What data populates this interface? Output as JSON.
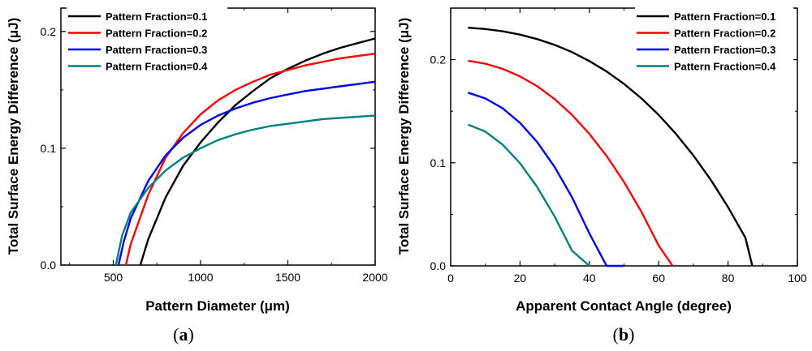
{
  "figure_labels": {
    "a_open": "(",
    "a_letter": "a",
    "a_close": ")",
    "b_open": "(",
    "b_letter": "b",
    "b_close": ")"
  },
  "chart_data": [
    {
      "type": "line",
      "panel": "a",
      "title": "",
      "xlabel": "Pattern Diameter (μm)",
      "ylabel": "Total Surface Energy Difference (μJ)",
      "xlim": [
        200,
        2000
      ],
      "ylim": [
        0,
        0.22
      ],
      "xticks": [
        500,
        1000,
        1500,
        2000
      ],
      "xtick_labels": [
        "500",
        "1000",
        "1500",
        "2000"
      ],
      "yticks": [
        0,
        0.1,
        0.2
      ],
      "ytick_labels": [
        "0.0",
        "0.1",
        "0.2"
      ],
      "legend_position": "top-left",
      "series": [
        {
          "name": "Pattern Fraction=0.1",
          "color": "#000000",
          "x": [
            655,
            700,
            800,
            900,
            1000,
            1100,
            1200,
            1300,
            1400,
            1500,
            1600,
            1700,
            1800,
            1900,
            2000
          ],
          "y": [
            0.0,
            0.022,
            0.058,
            0.085,
            0.105,
            0.122,
            0.137,
            0.149,
            0.16,
            0.168,
            0.175,
            0.181,
            0.186,
            0.19,
            0.194
          ]
        },
        {
          "name": "Pattern Fraction=0.2",
          "color": "#ff0000",
          "x": [
            572,
            600,
            700,
            800,
            900,
            1000,
            1100,
            1200,
            1300,
            1400,
            1500,
            1600,
            1700,
            1800,
            1900,
            2000
          ],
          "y": [
            0.0,
            0.018,
            0.06,
            0.092,
            0.113,
            0.129,
            0.141,
            0.15,
            0.157,
            0.163,
            0.167,
            0.171,
            0.174,
            0.177,
            0.179,
            0.181
          ]
        },
        {
          "name": "Pattern Fraction=0.3",
          "color": "#0000ee",
          "x": [
            530,
            560,
            600,
            700,
            800,
            900,
            1000,
            1100,
            1200,
            1300,
            1400,
            1500,
            1600,
            1700,
            1800,
            1900,
            2000
          ],
          "y": [
            0.0,
            0.02,
            0.04,
            0.072,
            0.094,
            0.109,
            0.12,
            0.128,
            0.134,
            0.139,
            0.143,
            0.146,
            0.149,
            0.151,
            0.153,
            0.155,
            0.157
          ]
        },
        {
          "name": "Pattern Fraction=0.4",
          "color": "#008080",
          "x": [
            515,
            550,
            600,
            700,
            800,
            900,
            1000,
            1100,
            1200,
            1300,
            1400,
            1500,
            1600,
            1700,
            1800,
            1900,
            2000
          ],
          "y": [
            0.0,
            0.025,
            0.045,
            0.066,
            0.081,
            0.092,
            0.1,
            0.107,
            0.112,
            0.116,
            0.119,
            0.121,
            0.123,
            0.125,
            0.126,
            0.127,
            0.128
          ]
        }
      ]
    },
    {
      "type": "line",
      "panel": "b",
      "title": "",
      "xlabel": "Apparent Contact Angle (degree)",
      "ylabel": "Total Surface Energy Difference (μJ)",
      "xlim": [
        0,
        100
      ],
      "ylim": [
        0,
        0.25
      ],
      "xticks": [
        0,
        20,
        40,
        60,
        80,
        100
      ],
      "xtick_labels": [
        "0",
        "20",
        "40",
        "60",
        "80",
        "100"
      ],
      "yticks": [
        0,
        0.1,
        0.2
      ],
      "ytick_labels": [
        "0.0",
        "0.1",
        "0.2"
      ],
      "legend_position": "top-right",
      "series": [
        {
          "name": "Pattern  Fraction=0.1",
          "color": "#000000",
          "x": [
            5,
            10,
            15,
            20,
            25,
            30,
            35,
            40,
            45,
            50,
            55,
            60,
            65,
            70,
            75,
            80,
            85,
            87
          ],
          "y": [
            0.231,
            0.2297,
            0.2275,
            0.2243,
            0.2199,
            0.2143,
            0.2073,
            0.1987,
            0.1885,
            0.1765,
            0.1625,
            0.1464,
            0.128,
            0.1071,
            0.0835,
            0.057,
            0.0273,
            0.0
          ]
        },
        {
          "name": "Pattern  Fraction=0.2",
          "color": "#ff0000",
          "x": [
            5,
            10,
            15,
            20,
            25,
            30,
            35,
            40,
            45,
            50,
            55,
            60,
            64
          ],
          "y": [
            0.199,
            0.1961,
            0.1911,
            0.1838,
            0.1741,
            0.1617,
            0.1464,
            0.1281,
            0.1065,
            0.0814,
            0.0525,
            0.0197,
            0.0
          ]
        },
        {
          "name": "Pattern  Fraction=0.3",
          "color": "#0000ee",
          "x": [
            5,
            10,
            15,
            20,
            25,
            30,
            35,
            40,
            45,
            50
          ],
          "y": [
            0.168,
            0.1624,
            0.1528,
            0.1387,
            0.1198,
            0.0958,
            0.0665,
            0.0315,
            0.0,
            0.0
          ]
        },
        {
          "name": "Pattern  Fraction=0.4",
          "color": "#008080",
          "x": [
            5,
            10,
            15,
            20,
            25,
            30,
            35,
            40
          ],
          "y": [
            0.137,
            0.1303,
            0.1176,
            0.0996,
            0.0762,
            0.0478,
            0.0147,
            0.0
          ]
        }
      ]
    }
  ]
}
